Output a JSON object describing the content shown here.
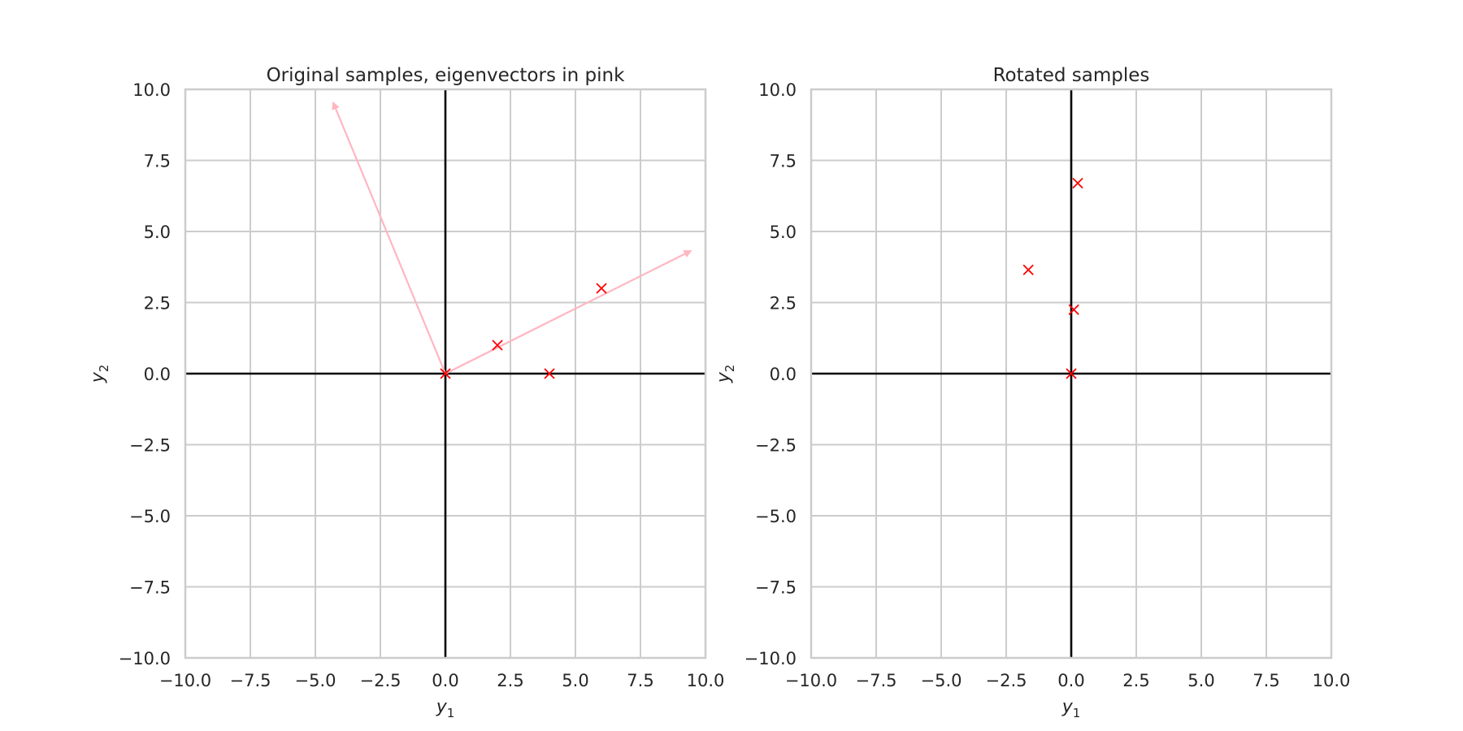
{
  "chart_data": [
    {
      "type": "scatter",
      "title": "Original samples, eigenvectors in pink",
      "xlabel": "y",
      "xlabel_sub": "1",
      "ylabel": "y",
      "ylabel_sub": "2",
      "xlim": [
        -10,
        10
      ],
      "ylim": [
        -10,
        10
      ],
      "grid": true,
      "xticks": [
        -10,
        -7.5,
        -5,
        -2.5,
        0,
        2.5,
        5,
        7.5,
        10
      ],
      "yticks": [
        -10,
        -7.5,
        -5,
        -2.5,
        0,
        2.5,
        5,
        7.5,
        10
      ],
      "xtick_labels": [
        "−10.0",
        "−7.5",
        "−5.0",
        "−2.5",
        "0.0",
        "2.5",
        "5.0",
        "7.5",
        "10.0"
      ],
      "ytick_labels": [
        "−10.0",
        "−7.5",
        "−5.0",
        "−2.5",
        "0.0",
        "2.5",
        "5.0",
        "7.5",
        "10.0"
      ],
      "points": {
        "marker": "x",
        "color": "#ff0000",
        "x": [
          0,
          2,
          4,
          6
        ],
        "y": [
          0,
          1,
          0,
          3
        ]
      },
      "vectors": {
        "color": "#ffb6c1",
        "items": [
          {
            "x0": 0,
            "y0": 0,
            "x1": 9.4,
            "y1": 4.3
          },
          {
            "x0": 0,
            "y0": 0,
            "x1": -4.3,
            "y1": 9.5
          }
        ]
      }
    },
    {
      "type": "scatter",
      "title": "Rotated samples",
      "xlabel": "y",
      "xlabel_sub": "1",
      "ylabel": "y",
      "ylabel_sub": "2",
      "xlim": [
        -10,
        10
      ],
      "ylim": [
        -10,
        10
      ],
      "grid": true,
      "xticks": [
        -10,
        -7.5,
        -5,
        -2.5,
        0,
        2.5,
        5,
        7.5,
        10
      ],
      "yticks": [
        -10,
        -7.5,
        -5,
        -2.5,
        0,
        2.5,
        5,
        7.5,
        10
      ],
      "xtick_labels": [
        "−10.0",
        "−7.5",
        "−5.0",
        "−2.5",
        "0.0",
        "2.5",
        "5.0",
        "7.5",
        "10.0"
      ],
      "ytick_labels": [
        "−10.0",
        "−7.5",
        "−5.0",
        "−2.5",
        "0.0",
        "2.5",
        "5.0",
        "7.5",
        "10.0"
      ],
      "points": {
        "marker": "x",
        "color": "#ff0000",
        "x": [
          0,
          0.1,
          -1.65,
          0.25
        ],
        "y": [
          0,
          2.25,
          3.65,
          6.7
        ]
      }
    }
  ]
}
